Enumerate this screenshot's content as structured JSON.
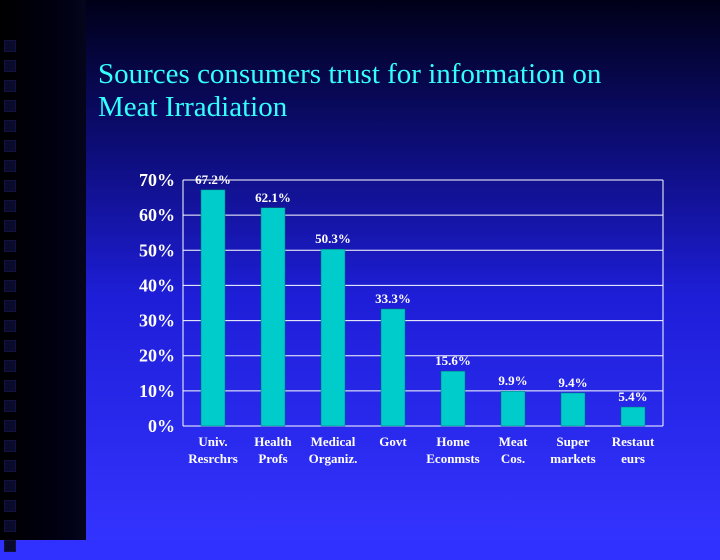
{
  "slide": {
    "title_lines": [
      "Sources consumers trust for information on",
      "Meat Irradiation"
    ]
  },
  "colors": {
    "bar": "#00cccc",
    "bar_edge": "#007777",
    "grid": "#ffffff",
    "text": "#ffffff",
    "title": "#33ffff"
  },
  "chart_data": {
    "type": "bar",
    "title": "",
    "xlabel": "",
    "ylabel": "",
    "categories": [
      [
        "Univ.",
        "Resrchrs"
      ],
      [
        "Health",
        "Profs"
      ],
      [
        "Medical",
        "Organiz."
      ],
      [
        "Govt"
      ],
      [
        "Home",
        "Econmsts"
      ],
      [
        "Meat",
        "Cos."
      ],
      [
        "Super",
        "markets"
      ],
      [
        "Restaut",
        "eurs"
      ]
    ],
    "values": [
      67.2,
      62.1,
      50.3,
      33.3,
      15.6,
      9.9,
      9.4,
      5.4
    ],
    "data_labels": [
      "67.2%",
      "62.1%",
      "50.3%",
      "33.3%",
      "15.6%",
      "9.9%",
      "9.4%",
      "5.4%"
    ],
    "ylim": [
      0,
      70
    ],
    "yticks": [
      "0%",
      "10%",
      "20%",
      "30%",
      "40%",
      "50%",
      "60%",
      "70%"
    ],
    "grid": true,
    "legend": "none"
  }
}
